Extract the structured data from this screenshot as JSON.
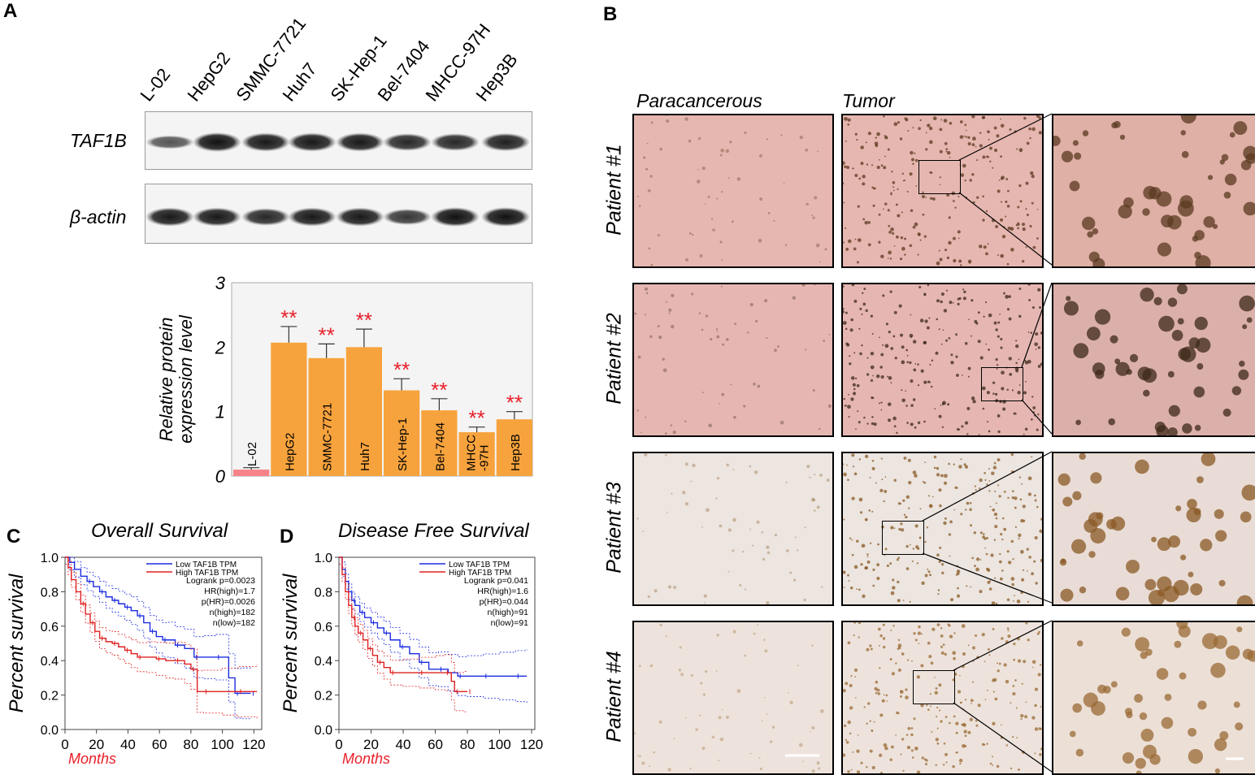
{
  "panels": {
    "A": "A",
    "B": "B",
    "C": "C",
    "D": "D"
  },
  "western_blot": {
    "lanes": [
      "L-02",
      "HepG2",
      "SMMC-7721",
      "Huh7",
      "SK-Hep-1",
      "Bel-7404",
      "MHCC-97H",
      "Hep3B"
    ],
    "rows": [
      {
        "label": "TAF1B",
        "intensity": [
          0.55,
          1.0,
          0.95,
          0.95,
          0.95,
          0.85,
          0.85,
          0.9
        ]
      },
      {
        "label": "β-actin",
        "intensity": [
          0.95,
          0.95,
          0.85,
          0.95,
          0.95,
          0.75,
          1.0,
          1.0
        ]
      }
    ]
  },
  "histology": {
    "col_paracancerous": "Paracancerous",
    "col_tumor": "Tumor",
    "patients": [
      "Patient #1",
      "Patient #2",
      "Patient #3",
      "Patient #4"
    ]
  },
  "colors": {
    "bar_main": "#f7a33d",
    "bar_control": "#f7838a",
    "sig": "#e8202a",
    "km_low": "#1c2de0",
    "km_high": "#e02020",
    "months": "#e8202a"
  },
  "chart_data": [
    {
      "type": "bar",
      "ylabel": "Relative protein\nexpression level",
      "ylim": [
        0,
        3
      ],
      "yticks": [
        "0",
        "1",
        "2",
        "3"
      ],
      "categories": [
        "L-02",
        "HepG2",
        "SMMC-7721",
        "Huh7",
        "SK-Hep-1",
        "Bel-7404",
        "MHCC\n-97H",
        "Hep3B"
      ],
      "values": [
        0.1,
        2.07,
        1.83,
        2.0,
        1.33,
        1.02,
        0.68,
        0.88
      ],
      "errors": [
        0.03,
        0.25,
        0.22,
        0.28,
        0.18,
        0.18,
        0.08,
        0.12
      ],
      "significance": [
        "",
        "**",
        "**",
        "**",
        "**",
        "**",
        "**",
        "**"
      ]
    },
    {
      "type": "line",
      "title": "Overall Survival",
      "xlabel": "Months",
      "ylabel": "Percent survival",
      "xlim": [
        0,
        125
      ],
      "ylim": [
        0,
        1.0
      ],
      "xticks": [
        "0",
        "20",
        "40",
        "60",
        "80",
        "100",
        "120"
      ],
      "yticks": [
        "0.0",
        "0.2",
        "0.4",
        "0.6",
        "0.8",
        "1.0"
      ],
      "legend": [
        "Low TAF1B TPM",
        "High TAF1B TPM"
      ],
      "stats": [
        "Logrank p=0.0023",
        "HR(high)=1.7",
        "p(HR)=0.0026",
        "n(high)=182",
        "n(low)=182"
      ],
      "series": [
        {
          "name": "Low TAF1B TPM",
          "x": [
            0,
            3,
            6,
            10,
            14,
            18,
            22,
            26,
            30,
            34,
            38,
            42,
            46,
            50,
            54,
            58,
            62,
            66,
            70,
            76,
            82,
            88,
            96,
            104,
            108,
            112,
            118
          ],
          "y": [
            1.0,
            0.97,
            0.93,
            0.89,
            0.86,
            0.83,
            0.8,
            0.77,
            0.75,
            0.73,
            0.71,
            0.69,
            0.66,
            0.62,
            0.57,
            0.54,
            0.52,
            0.52,
            0.49,
            0.47,
            0.42,
            0.42,
            0.42,
            0.3,
            0.21,
            0.21,
            0.21
          ]
        },
        {
          "name": "High TAF1B TPM",
          "x": [
            0,
            2,
            4,
            7,
            10,
            13,
            16,
            19,
            22,
            26,
            30,
            34,
            38,
            42,
            46,
            52,
            58,
            64,
            70,
            76,
            80,
            84,
            88,
            100,
            110,
            122
          ],
          "y": [
            1.0,
            0.94,
            0.87,
            0.8,
            0.73,
            0.67,
            0.62,
            0.57,
            0.53,
            0.51,
            0.5,
            0.48,
            0.46,
            0.44,
            0.42,
            0.42,
            0.41,
            0.4,
            0.4,
            0.38,
            0.35,
            0.22,
            0.22,
            0.22,
            0.22,
            0.22
          ]
        }
      ]
    },
    {
      "type": "line",
      "title": "Disease Free Survival",
      "xlabel": "Months",
      "ylabel": "Percent survival",
      "xlim": [
        0,
        122
      ],
      "ylim": [
        0,
        1.0
      ],
      "xticks": [
        "0",
        "20",
        "40",
        "60",
        "80",
        "100",
        "120"
      ],
      "yticks": [
        "0.0",
        "0.2",
        "0.4",
        "0.6",
        "0.8",
        "1.0"
      ],
      "legend": [
        "Low TAF1B TPM",
        "High TAF1B TPM"
      ],
      "stats": [
        "Logrank p=0.041",
        "HR(high)=1.6",
        "p(HR)=0.044",
        "n(high)=91",
        "n(low)=91"
      ],
      "series": [
        {
          "name": "Low TAF1B TPM",
          "x": [
            0,
            2,
            4,
            6,
            8,
            10,
            13,
            16,
            20,
            24,
            28,
            32,
            38,
            44,
            50,
            56,
            62,
            68,
            74,
            80,
            90,
            100,
            110,
            117
          ],
          "y": [
            1.0,
            0.93,
            0.86,
            0.8,
            0.75,
            0.72,
            0.68,
            0.65,
            0.62,
            0.59,
            0.56,
            0.52,
            0.48,
            0.44,
            0.39,
            0.35,
            0.35,
            0.33,
            0.31,
            0.31,
            0.31,
            0.31,
            0.31,
            0.31
          ]
        },
        {
          "name": "High TAF1B TPM",
          "x": [
            0,
            2,
            4,
            6,
            8,
            10,
            12,
            15,
            18,
            21,
            24,
            28,
            32,
            40,
            50,
            60,
            66,
            70,
            72,
            78,
            80
          ],
          "y": [
            1.0,
            0.9,
            0.8,
            0.72,
            0.65,
            0.6,
            0.56,
            0.52,
            0.47,
            0.43,
            0.39,
            0.36,
            0.33,
            0.33,
            0.33,
            0.33,
            0.33,
            0.28,
            0.22,
            0.22,
            0.22
          ]
        }
      ]
    }
  ]
}
